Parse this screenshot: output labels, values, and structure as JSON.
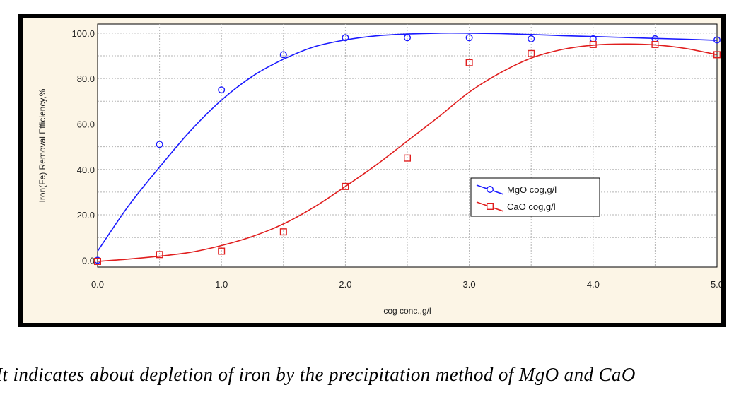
{
  "chart_data": {
    "type": "scatter",
    "title": "",
    "xlabel": "cog conc.,g/l",
    "ylabel": "Iron(Fe) Removal Efficiency,%",
    "xlim": [
      0,
      5
    ],
    "ylim": [
      -3,
      104
    ],
    "x_ticks": [
      "0.0",
      "1.0",
      "2.0",
      "3.0",
      "4.0",
      "5.0"
    ],
    "y_ticks": [
      "0.0",
      "20.0",
      "40.0",
      "60.0",
      "80.0",
      "100.0"
    ],
    "grid": true,
    "legend_position": "right",
    "series": [
      {
        "name": "MgO cog,g/l",
        "marker": "circle",
        "color": "#1a1aff",
        "x": [
          0.0,
          0.5,
          1.0,
          1.5,
          2.0,
          2.5,
          3.0,
          3.5,
          4.0,
          4.5,
          5.0
        ],
        "y": [
          0.0,
          51.0,
          75.0,
          90.5,
          98.0,
          98.0,
          98.0,
          97.5,
          97.5,
          97.5,
          97.0
        ],
        "fit_x": [
          0.0,
          0.25,
          0.5,
          0.75,
          1.0,
          1.25,
          1.5,
          1.75,
          2.0,
          2.25,
          2.5,
          2.75,
          3.0,
          3.25,
          3.5,
          3.75,
          4.0,
          4.25,
          4.5,
          4.75,
          5.0
        ],
        "fit_y": [
          4.0,
          24.0,
          41.0,
          57.0,
          70.5,
          81.0,
          88.5,
          94.0,
          97.0,
          98.8,
          99.6,
          100.0,
          100.0,
          99.8,
          99.4,
          98.9,
          98.5,
          98.1,
          97.7,
          97.3,
          96.8
        ]
      },
      {
        "name": "CaO cog,g/l",
        "marker": "square",
        "color": "#e01e1e",
        "x": [
          0.0,
          0.5,
          1.0,
          1.5,
          2.0,
          2.5,
          3.0,
          3.5,
          4.0,
          4.5,
          5.0
        ],
        "y": [
          -0.5,
          2.5,
          4.0,
          12.5,
          32.5,
          45.0,
          87.0,
          91.0,
          95.0,
          95.0,
          90.5
        ],
        "fit_x": [
          0.0,
          0.25,
          0.5,
          0.75,
          1.0,
          1.25,
          1.5,
          1.75,
          2.0,
          2.25,
          2.5,
          2.75,
          3.0,
          3.25,
          3.5,
          3.75,
          4.0,
          4.25,
          4.5,
          4.75,
          5.0
        ],
        "fit_y": [
          -0.5,
          0.5,
          1.8,
          3.5,
          6.5,
          10.5,
          16.0,
          23.5,
          32.5,
          42.0,
          52.5,
          63.0,
          74.0,
          82.5,
          89.0,
          92.8,
          94.7,
          95.2,
          94.8,
          93.2,
          90.5
        ]
      }
    ]
  },
  "caption": "It indicates about depletion of iron by the precipitation method of MgO and CaO"
}
